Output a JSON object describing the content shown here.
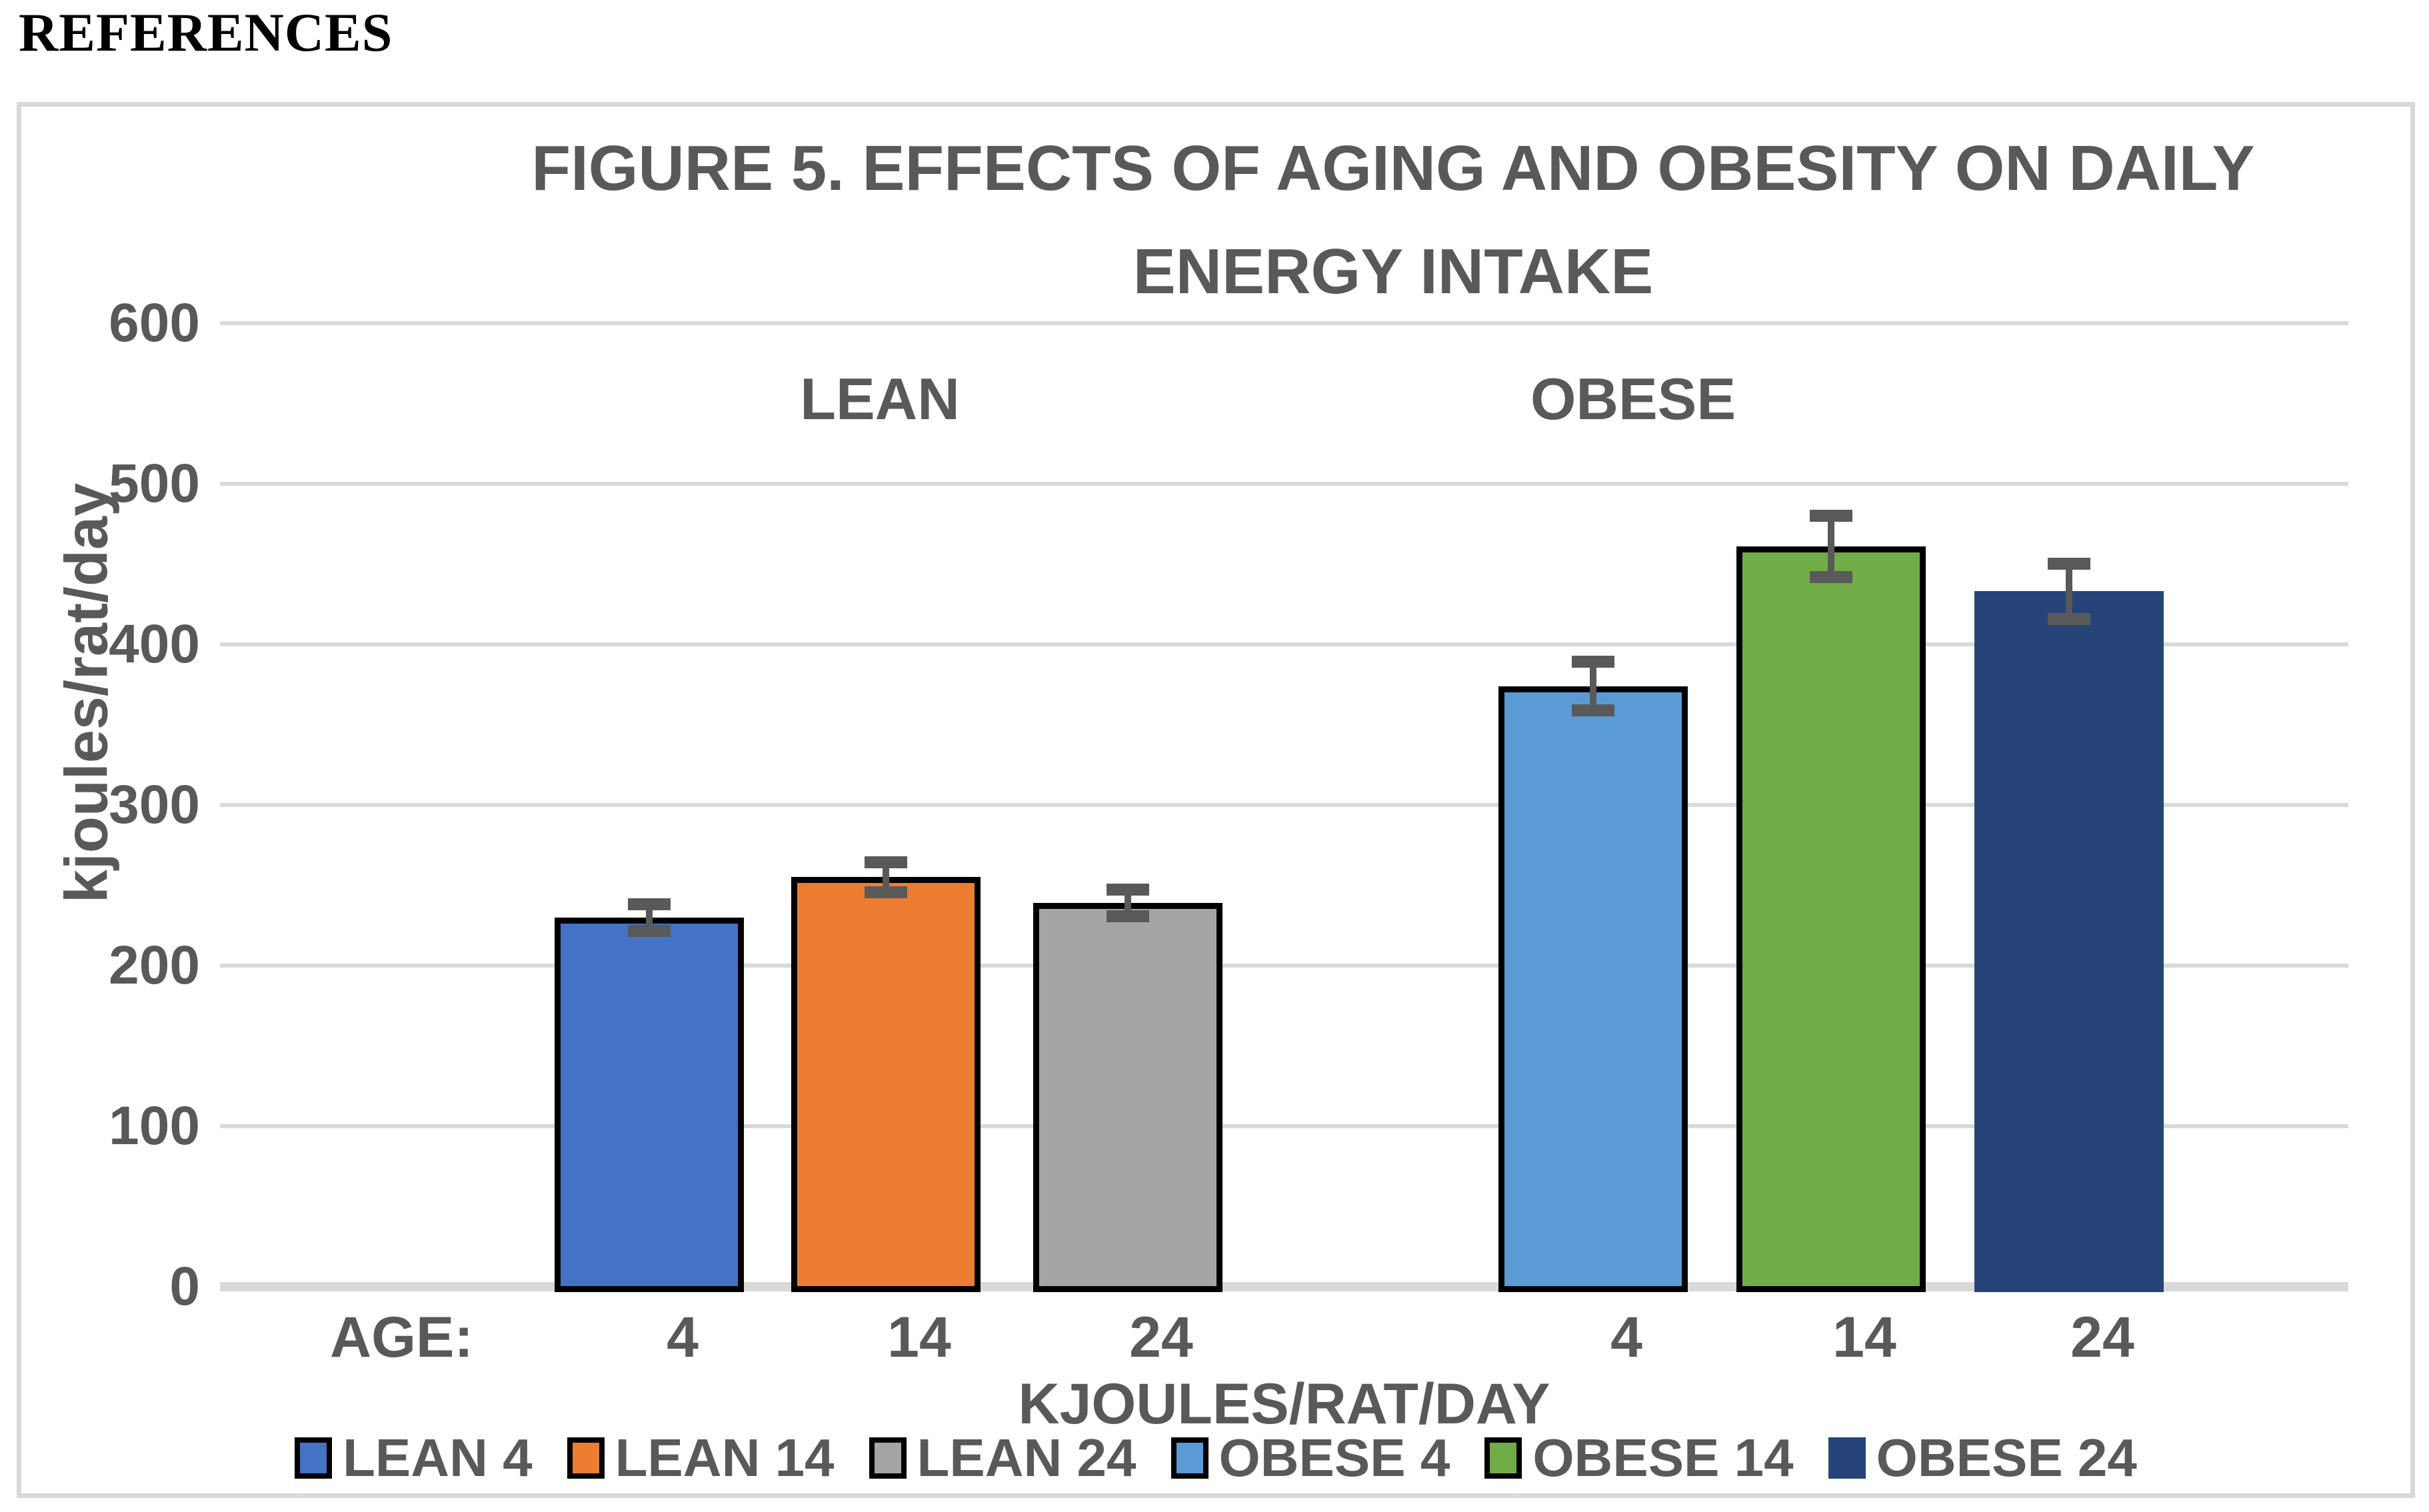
{
  "page": {
    "header": "REFERENCES"
  },
  "chart": {
    "title_line1": "FIGURE  5. EFFECTS OF AGING AND OBESITY ON DAILY",
    "title_line2": "ENERGY INTAKE",
    "y_axis_title": "kjoules/rat/day",
    "x_axis_title": "KJOULES/RAT/DAY",
    "age_prefix": "AGE:",
    "group_labels": [
      "LEAN",
      "OBESE"
    ],
    "colors": {
      "text": "#595959",
      "gridline": "#d9d9d9",
      "frame_border": "#d9d9d9",
      "error_bar": "#595959",
      "bar_outline": "#000000"
    }
  },
  "chart_data": {
    "type": "bar",
    "title": "FIGURE 5. EFFECTS OF AGING AND OBESITY ON DAILY ENERGY INTAKE",
    "xlabel": "KJOULES/RAT/DAY",
    "ylabel": "kjoules/rat/day",
    "ylim": [
      0,
      600
    ],
    "yticks": [
      0,
      100,
      200,
      300,
      400,
      500,
      600
    ],
    "grid": true,
    "legend_position": "bottom",
    "categories": [
      "4",
      "14",
      "24",
      "4",
      "14",
      "24"
    ],
    "groups": [
      {
        "name": "LEAN",
        "categories": [
          "4",
          "14",
          "24"
        ]
      },
      {
        "name": "OBESE",
        "categories": [
          "4",
          "14",
          "24"
        ]
      }
    ],
    "series": [
      {
        "name": "LEAN 4",
        "value": 230,
        "error": 12,
        "color": "#4472c4",
        "outlined": true
      },
      {
        "name": "LEAN 14",
        "value": 255,
        "error": 13,
        "color": "#ed7d31",
        "outlined": true
      },
      {
        "name": "LEAN 24",
        "value": 239,
        "error": 12,
        "color": "#a5a5a5",
        "outlined": true
      },
      {
        "name": "OBESE 4",
        "value": 374,
        "error": 19,
        "color": "#5b9bd5",
        "outlined": true
      },
      {
        "name": "OBESE 14",
        "value": 461,
        "error": 23,
        "color": "#70ad47",
        "outlined": true
      },
      {
        "name": "OBESE 24",
        "value": 433,
        "error": 21,
        "color": "#264478",
        "outlined": false
      }
    ]
  }
}
